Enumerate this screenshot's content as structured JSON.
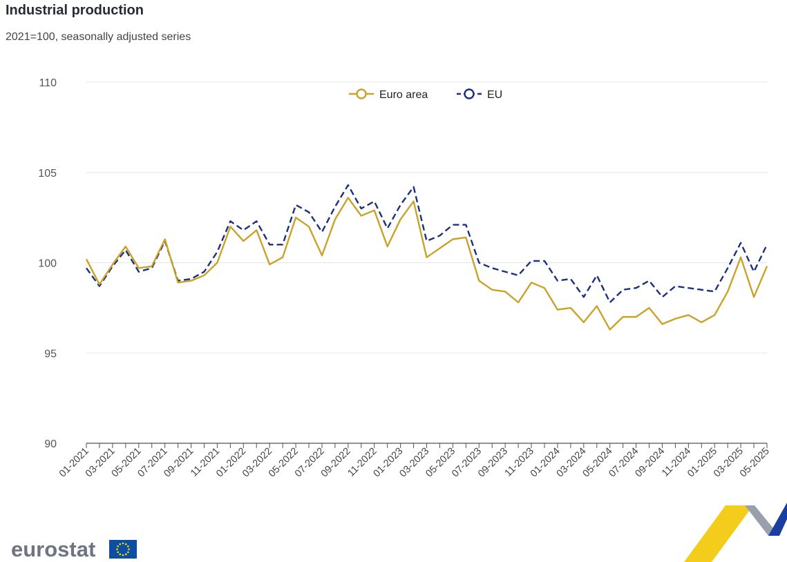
{
  "header": {
    "title": "Industrial production",
    "subtitle": "2021=100, seasonally adjusted series"
  },
  "brand": {
    "logo_text": "eurostat",
    "flag_icon": "eu-flag-icon"
  },
  "colors": {
    "euro_area": "#c9a227",
    "eu": "#1b2f7f",
    "grid": "#e6e9ef",
    "axis": "#4a5266"
  },
  "chart_data": {
    "type": "line",
    "title": "Industrial production",
    "subtitle": "2021=100, seasonally adjusted series",
    "xlabel": "",
    "ylabel": "",
    "ylim": [
      90,
      110
    ],
    "yticks": [
      90,
      95,
      100,
      105,
      110
    ],
    "grid": true,
    "legend_position": "top-center",
    "x_labels": [
      "01-2021",
      "03-2021",
      "05-2021",
      "07-2021",
      "09-2021",
      "11-2021",
      "01-2022",
      "03-2022",
      "05-2022",
      "07-2022",
      "09-2022",
      "11-2022",
      "01-2023",
      "03-2023",
      "05-2023",
      "07-2023",
      "09-2023",
      "11-2023",
      "01-2024",
      "03-2024",
      "05-2024",
      "07-2024",
      "09-2024",
      "11-2024",
      "01-2025",
      "03-2025",
      "05-2025"
    ],
    "x": [
      "01-2021",
      "02-2021",
      "03-2021",
      "04-2021",
      "05-2021",
      "06-2021",
      "07-2021",
      "08-2021",
      "09-2021",
      "10-2021",
      "11-2021",
      "12-2021",
      "01-2022",
      "02-2022",
      "03-2022",
      "04-2022",
      "05-2022",
      "06-2022",
      "07-2022",
      "08-2022",
      "09-2022",
      "10-2022",
      "11-2022",
      "12-2022",
      "01-2023",
      "02-2023",
      "03-2023",
      "04-2023",
      "05-2023",
      "06-2023",
      "07-2023",
      "08-2023",
      "09-2023",
      "10-2023",
      "11-2023",
      "12-2023",
      "01-2024",
      "02-2024",
      "03-2024",
      "04-2024",
      "05-2024",
      "06-2024",
      "07-2024",
      "08-2024",
      "09-2024",
      "10-2024",
      "11-2024",
      "12-2024",
      "01-2025",
      "02-2025",
      "03-2025",
      "04-2025",
      "05-2025"
    ],
    "series": [
      {
        "name": "Euro area",
        "style": "solid",
        "values": [
          100.2,
          98.8,
          99.9,
          100.9,
          99.7,
          99.8,
          101.3,
          98.9,
          99.0,
          99.3,
          100.0,
          102.0,
          101.2,
          101.8,
          99.9,
          100.3,
          102.5,
          102.0,
          100.4,
          102.4,
          103.6,
          102.6,
          102.9,
          100.9,
          102.4,
          103.4,
          100.3,
          100.8,
          101.3,
          101.4,
          99.0,
          98.5,
          98.4,
          97.8,
          98.9,
          98.6,
          97.4,
          97.5,
          96.7,
          97.6,
          96.3,
          97.0,
          97.0,
          97.5,
          96.6,
          96.9,
          97.1,
          96.7,
          97.1,
          98.4,
          100.3,
          98.1,
          99.8
        ]
      },
      {
        "name": "EU",
        "style": "dashed",
        "values": [
          99.7,
          98.7,
          99.8,
          100.7,
          99.5,
          99.7,
          101.2,
          99.0,
          99.1,
          99.5,
          100.6,
          102.3,
          101.8,
          102.3,
          101.0,
          101.0,
          103.2,
          102.8,
          101.7,
          103.1,
          104.3,
          103.0,
          103.4,
          101.9,
          103.2,
          104.2,
          101.2,
          101.5,
          102.1,
          102.1,
          100.0,
          99.7,
          99.5,
          99.3,
          100.1,
          100.1,
          99.0,
          99.1,
          98.1,
          99.3,
          97.8,
          98.5,
          98.6,
          99.0,
          98.1,
          98.7,
          98.6,
          98.5,
          98.4,
          99.7,
          101.1,
          99.5,
          101.0
        ]
      }
    ]
  }
}
